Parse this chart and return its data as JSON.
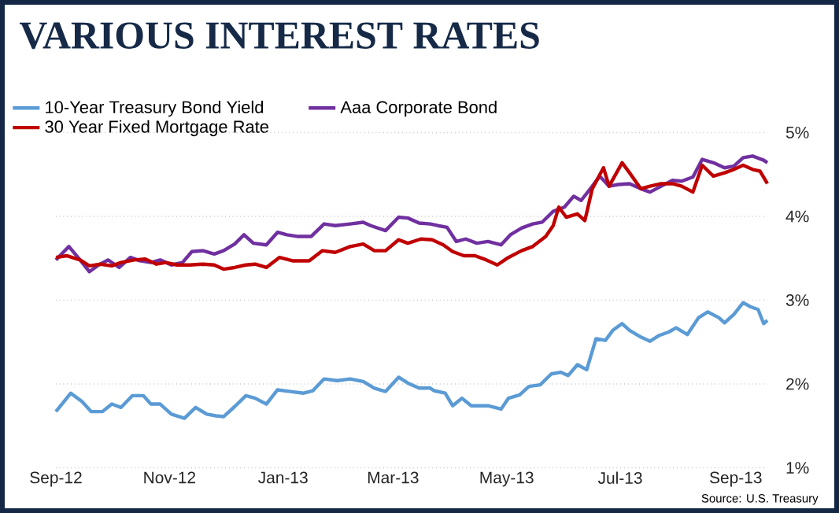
{
  "chart_data": {
    "type": "line",
    "title": "VARIOUS INTEREST RATES",
    "annotations": [
      "Source: U.S. Treasury"
    ],
    "xlim": [
      "2012-09-01",
      "2013-09-18"
    ],
    "xticks": [
      {
        "value": "2012-09-01",
        "label": "Sep-12"
      },
      {
        "value": "2012-11-01",
        "label": "Nov-12"
      },
      {
        "value": "2013-01-01",
        "label": "Jan-13"
      },
      {
        "value": "2013-03-01",
        "label": "Mar-13"
      },
      {
        "value": "2013-05-01",
        "label": "May-13"
      },
      {
        "value": "2013-07-01",
        "label": "Jul-13"
      },
      {
        "value": "2013-09-01",
        "label": "Sep-13"
      }
    ],
    "ylim": [
      1,
      5
    ],
    "yticks": [
      {
        "value": 1,
        "label": "1%"
      },
      {
        "value": 2,
        "label": "2%"
      },
      {
        "value": 3,
        "label": "3%"
      },
      {
        "value": 4,
        "label": "4%"
      },
      {
        "value": 5,
        "label": "5%"
      }
    ],
    "grid": "y",
    "legend": "top left",
    "marker": "none",
    "line_style": "solid",
    "series": [
      {
        "name": "10-Year Treasury Bond Yield",
        "color": "#5b9bd5",
        "x": [
          "2012-09-01",
          "2012-09-09",
          "2012-09-15",
          "2012-09-20",
          "2012-09-26",
          "2012-10-01",
          "2012-10-06",
          "2012-10-12",
          "2012-10-18",
          "2012-10-22",
          "2012-10-27",
          "2012-11-02",
          "2012-11-09",
          "2012-11-15",
          "2012-11-21",
          "2012-11-26",
          "2012-11-30",
          "2012-12-06",
          "2012-12-12",
          "2012-12-17",
          "2012-12-23",
          "2012-12-29",
          "2013-01-05",
          "2013-01-12",
          "2013-01-17",
          "2013-01-23",
          "2013-01-30",
          "2013-02-06",
          "2013-02-13",
          "2013-02-19",
          "2013-02-25",
          "2013-03-04",
          "2013-03-09",
          "2013-03-15",
          "2013-03-21",
          "2013-03-23",
          "2013-03-29",
          "2013-04-02",
          "2013-04-07",
          "2013-04-12",
          "2013-04-21",
          "2013-04-28",
          "2013-05-02",
          "2013-05-08",
          "2013-05-13",
          "2013-05-19",
          "2013-05-25",
          "2013-05-30",
          "2013-06-03",
          "2013-06-08",
          "2013-06-13",
          "2013-06-18",
          "2013-06-23",
          "2013-06-27",
          "2013-07-02",
          "2013-07-06",
          "2013-07-12",
          "2013-07-17",
          "2013-07-22",
          "2013-07-27",
          "2013-07-31",
          "2013-08-06",
          "2013-08-12",
          "2013-08-17",
          "2013-08-23",
          "2013-08-26",
          "2013-08-31",
          "2013-09-05",
          "2013-09-09",
          "2013-09-13",
          "2013-09-16",
          "2013-09-18"
        ],
        "values": [
          1.67,
          1.89,
          1.79,
          1.67,
          1.67,
          1.76,
          1.72,
          1.86,
          1.86,
          1.76,
          1.76,
          1.64,
          1.59,
          1.72,
          1.64,
          1.62,
          1.61,
          1.73,
          1.86,
          1.83,
          1.76,
          1.93,
          1.91,
          1.89,
          1.92,
          2.06,
          2.04,
          2.06,
          2.03,
          1.95,
          1.91,
          2.08,
          2.01,
          1.95,
          1.95,
          1.92,
          1.89,
          1.74,
          1.83,
          1.74,
          1.74,
          1.7,
          1.83,
          1.87,
          1.97,
          1.99,
          2.12,
          2.14,
          2.1,
          2.23,
          2.17,
          2.54,
          2.52,
          2.64,
          2.72,
          2.64,
          2.56,
          2.51,
          2.58,
          2.62,
          2.67,
          2.59,
          2.79,
          2.86,
          2.79,
          2.73,
          2.83,
          2.97,
          2.92,
          2.89,
          2.72,
          2.76
        ]
      },
      {
        "name": "Aaa Corporate Bond",
        "color": "#7030a0",
        "x": [
          "2012-09-01",
          "2012-09-08",
          "2012-09-14",
          "2012-09-19",
          "2012-09-24",
          "2012-09-29",
          "2012-10-05",
          "2012-10-11",
          "2012-10-16",
          "2012-10-22",
          "2012-10-27",
          "2012-11-02",
          "2012-11-08",
          "2012-11-13",
          "2012-11-19",
          "2012-11-25",
          "2012-11-30",
          "2012-12-06",
          "2012-12-11",
          "2012-12-16",
          "2012-12-23",
          "2012-12-29",
          "2013-01-03",
          "2013-01-09",
          "2013-01-16",
          "2013-01-23",
          "2013-01-29",
          "2013-02-06",
          "2013-02-13",
          "2013-02-17",
          "2013-02-25",
          "2013-03-04",
          "2013-03-09",
          "2013-03-15",
          "2013-03-21",
          "2013-03-25",
          "2013-03-30",
          "2013-04-04",
          "2013-04-09",
          "2013-04-15",
          "2013-04-21",
          "2013-04-28",
          "2013-05-03",
          "2013-05-09",
          "2013-05-15",
          "2013-05-20",
          "2013-05-26",
          "2013-06-01",
          "2013-06-06",
          "2013-06-10",
          "2013-06-16",
          "2013-06-20",
          "2013-06-25",
          "2013-06-30",
          "2013-07-06",
          "2013-07-12",
          "2013-07-17",
          "2013-07-23",
          "2013-07-29",
          "2013-08-03",
          "2013-08-09",
          "2013-08-14",
          "2013-08-20",
          "2013-08-26",
          "2013-08-31",
          "2013-09-05",
          "2013-09-10",
          "2013-09-16",
          "2013-09-18"
        ],
        "values": [
          3.48,
          3.64,
          3.48,
          3.34,
          3.42,
          3.48,
          3.39,
          3.51,
          3.47,
          3.45,
          3.48,
          3.42,
          3.45,
          3.58,
          3.59,
          3.55,
          3.59,
          3.67,
          3.78,
          3.68,
          3.66,
          3.81,
          3.78,
          3.76,
          3.76,
          3.91,
          3.89,
          3.91,
          3.93,
          3.89,
          3.83,
          3.99,
          3.98,
          3.92,
          3.91,
          3.89,
          3.87,
          3.7,
          3.73,
          3.68,
          3.7,
          3.66,
          3.78,
          3.86,
          3.91,
          3.93,
          4.06,
          4.11,
          4.24,
          4.19,
          4.36,
          4.48,
          4.36,
          4.38,
          4.39,
          4.33,
          4.29,
          4.36,
          4.43,
          4.42,
          4.47,
          4.68,
          4.64,
          4.58,
          4.6,
          4.7,
          4.72,
          4.67,
          4.64
        ]
      },
      {
        "name": "30 Year Fixed Mortgage Rate",
        "color": "#c00000",
        "x": [
          "2012-09-01",
          "2012-09-07",
          "2012-09-14",
          "2012-09-19",
          "2012-09-25",
          "2012-10-01",
          "2012-10-06",
          "2012-10-13",
          "2012-10-19",
          "2012-10-25",
          "2012-10-30",
          "2012-11-05",
          "2012-11-12",
          "2012-11-19",
          "2012-11-25",
          "2012-11-30",
          "2012-12-06",
          "2012-12-12",
          "2012-12-17",
          "2012-12-23",
          "2012-12-30",
          "2013-01-06",
          "2013-01-15",
          "2013-01-22",
          "2013-01-29",
          "2013-02-06",
          "2013-02-13",
          "2013-02-19",
          "2013-02-25",
          "2013-03-04",
          "2013-03-09",
          "2013-03-16",
          "2013-03-22",
          "2013-03-28",
          "2013-04-02",
          "2013-04-08",
          "2013-04-14",
          "2013-04-19",
          "2013-04-26",
          "2013-05-02",
          "2013-05-09",
          "2013-05-15",
          "2013-05-22",
          "2013-05-26",
          "2013-05-29",
          "2013-06-02",
          "2013-06-08",
          "2013-06-12",
          "2013-06-16",
          "2013-06-22",
          "2013-06-25",
          "2013-07-02",
          "2013-07-06",
          "2013-07-12",
          "2013-07-17",
          "2013-07-23",
          "2013-07-29",
          "2013-08-03",
          "2013-08-09",
          "2013-08-14",
          "2013-08-20",
          "2013-08-26",
          "2013-08-31",
          "2013-09-05",
          "2013-09-10",
          "2013-09-14",
          "2013-09-18"
        ],
        "values": [
          3.51,
          3.53,
          3.48,
          3.41,
          3.43,
          3.41,
          3.45,
          3.48,
          3.49,
          3.43,
          3.45,
          3.42,
          3.42,
          3.43,
          3.42,
          3.37,
          3.39,
          3.42,
          3.43,
          3.39,
          3.51,
          3.47,
          3.47,
          3.59,
          3.57,
          3.64,
          3.67,
          3.59,
          3.59,
          3.72,
          3.68,
          3.73,
          3.72,
          3.66,
          3.58,
          3.53,
          3.53,
          3.49,
          3.42,
          3.51,
          3.59,
          3.64,
          3.76,
          3.89,
          4.11,
          3.99,
          4.03,
          3.95,
          4.33,
          4.58,
          4.36,
          4.64,
          4.52,
          4.33,
          4.36,
          4.39,
          4.39,
          4.36,
          4.29,
          4.61,
          4.48,
          4.52,
          4.56,
          4.61,
          4.56,
          4.54,
          4.39
        ]
      }
    ]
  }
}
